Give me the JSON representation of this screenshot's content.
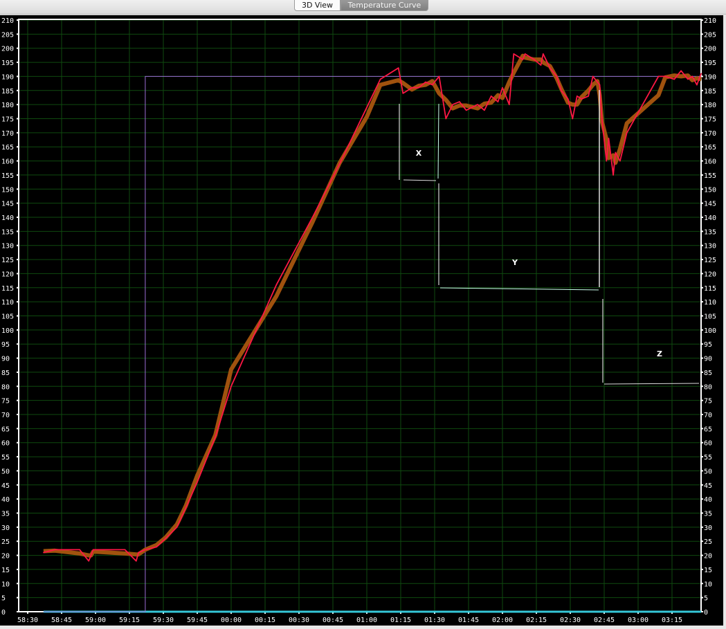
{
  "tabs": [
    {
      "label": "3D View",
      "active": false
    },
    {
      "label": "Temperature Curve",
      "active": true
    }
  ],
  "chart_data": {
    "type": "line",
    "title": "",
    "xlabel": "",
    "ylabel": "",
    "ylim": [
      0,
      210
    ],
    "xlim": [
      "58:30",
      "03:30"
    ],
    "grid": true,
    "y_ticks": [
      0,
      5,
      10,
      15,
      20,
      25,
      30,
      35,
      40,
      45,
      50,
      55,
      60,
      65,
      70,
      75,
      80,
      85,
      90,
      95,
      100,
      105,
      110,
      115,
      120,
      125,
      130,
      135,
      140,
      145,
      150,
      155,
      160,
      165,
      170,
      175,
      180,
      185,
      190,
      195,
      200,
      205,
      210
    ],
    "x_ticks": [
      "58:30",
      "58:45",
      "59:00",
      "59:15",
      "59:30",
      "59:45",
      "00:00",
      "00:15",
      "00:30",
      "00:45",
      "01:00",
      "01:15",
      "01:30",
      "01:45",
      "02:00",
      "02:15",
      "02:30",
      "02:45",
      "03:00",
      "03:15"
    ],
    "colors": {
      "background": "#000000",
      "grid": "#0f4a0f",
      "measured": "#ff1744",
      "smoothed": "#a0520e",
      "target": "#9b6fd6",
      "baseline": "#35c8d8",
      "axis": "#ffffff"
    },
    "series": [
      {
        "key": "measured",
        "x": [
          "58:37",
          "58:42",
          "58:53",
          "58:57",
          "58:58",
          "58:59",
          "59:13",
          "59:18",
          "59:19",
          "59:22",
          "59:27",
          "59:31",
          "59:36",
          "59:40",
          "59:45",
          "59:53",
          "00:00",
          "00:20",
          "00:36",
          "00:48",
          "01:00",
          "01:06",
          "01:14",
          "01:16",
          "01:20",
          "01:23",
          "01:26",
          "01:29",
          "01:32",
          "01:35",
          "01:38",
          "01:41",
          "01:44",
          "01:49",
          "01:52",
          "01:55",
          "01:58",
          "02:00",
          "02:03",
          "02:05",
          "02:09",
          "02:10",
          "02:14",
          "02:17",
          "02:18",
          "02:21",
          "02:24",
          "02:26",
          "02:29",
          "02:31",
          "02:33",
          "02:35",
          "02:38",
          "02:40",
          "02:42",
          "02:43",
          "02:44",
          "02:46",
          "02:47",
          "02:49",
          "02:50",
          "02:52",
          "02:55",
          "03:09",
          "03:12",
          "03:16",
          "03:19",
          "03:22",
          "03:24",
          "03:26",
          "03:28"
        ],
        "y": [
          21,
          22,
          22,
          18,
          20,
          22,
          22,
          18,
          21,
          22,
          23,
          26,
          30,
          37,
          46,
          62,
          80,
          116,
          140,
          159,
          179,
          189,
          193,
          184,
          186,
          186,
          188,
          187,
          190,
          175,
          180,
          181,
          178,
          180,
          178,
          183,
          181,
          186,
          180,
          198,
          196,
          198,
          196,
          194,
          198,
          193,
          190,
          185,
          182,
          175,
          183,
          182,
          183,
          190,
          188,
          187,
          175,
          160,
          168,
          155,
          163,
          160,
          170,
          190,
          190,
          189,
          192,
          189,
          190,
          187,
          191
        ]
      },
      {
        "key": "target",
        "x": [
          "58:37",
          "59:22",
          "59:22",
          "03:30"
        ],
        "y": [
          0,
          0,
          190,
          190
        ]
      },
      {
        "key": "baseline",
        "x": [
          "58:37",
          "03:30"
        ],
        "y": [
          0,
          0
        ]
      }
    ],
    "annotations": [
      {
        "label": "X"
      },
      {
        "label": "Y"
      },
      {
        "label": "Z"
      }
    ]
  }
}
